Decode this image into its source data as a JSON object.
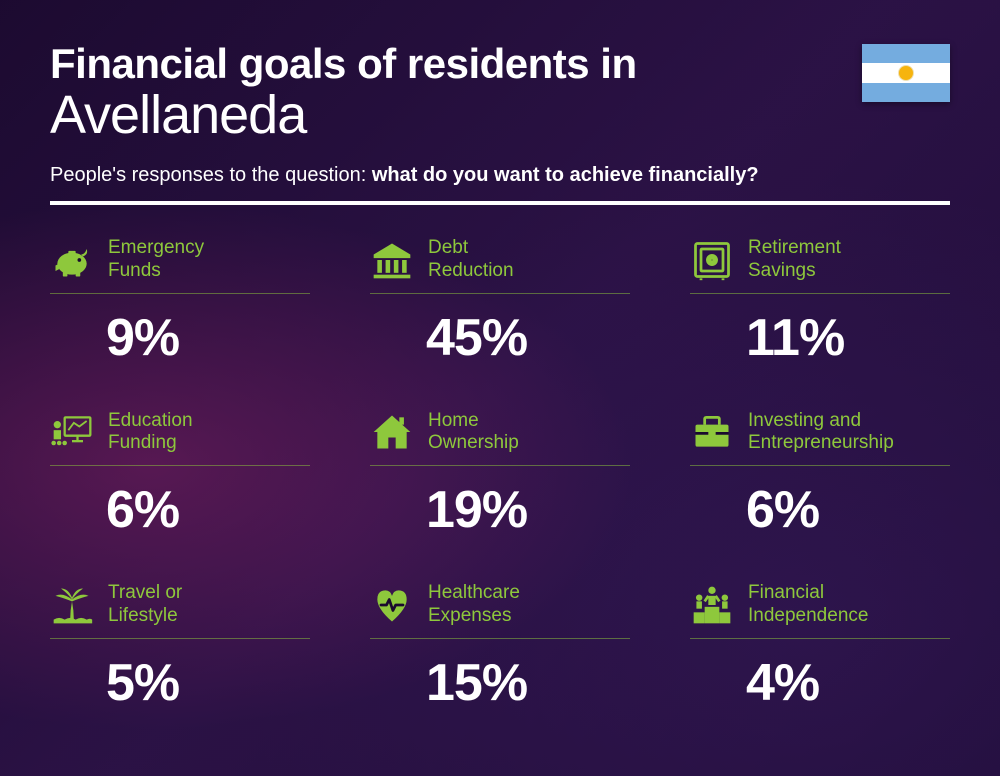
{
  "colors": {
    "accent": "#8ec83c",
    "text": "#ffffff",
    "flag_blue": "#74acdf",
    "flag_white": "#ffffff",
    "flag_sun": "#f6b40e",
    "divider": "#ffffff"
  },
  "header": {
    "title_line1": "Financial goals of residents in",
    "title_line2": "Avellaneda",
    "subtitle_prefix": "People's responses to the question: ",
    "subtitle_bold": "what do you want to achieve financially?"
  },
  "goals": [
    {
      "label_line1": "Emergency",
      "label_line2": "Funds",
      "value": "9%",
      "icon": "piggy-bank"
    },
    {
      "label_line1": "Debt",
      "label_line2": "Reduction",
      "value": "45%",
      "icon": "bank"
    },
    {
      "label_line1": "Retirement",
      "label_line2": "Savings",
      "value": "11%",
      "icon": "safe"
    },
    {
      "label_line1": "Education",
      "label_line2": "Funding",
      "value": "6%",
      "icon": "presentation"
    },
    {
      "label_line1": "Home",
      "label_line2": "Ownership",
      "value": "19%",
      "icon": "house"
    },
    {
      "label_line1": "Investing and",
      "label_line2": "Entrepreneurship",
      "value": "6%",
      "icon": "briefcase"
    },
    {
      "label_line1": "Travel or",
      "label_line2": "Lifestyle",
      "value": "5%",
      "icon": "palm"
    },
    {
      "label_line1": "Healthcare",
      "label_line2": "Expenses",
      "value": "15%",
      "icon": "heart-pulse"
    },
    {
      "label_line1": "Financial",
      "label_line2": "Independence",
      "value": "4%",
      "icon": "podium"
    }
  ],
  "typography": {
    "title_bold_size": 42,
    "title_light_size": 54,
    "subtitle_size": 20,
    "label_size": 19,
    "value_size": 52
  }
}
